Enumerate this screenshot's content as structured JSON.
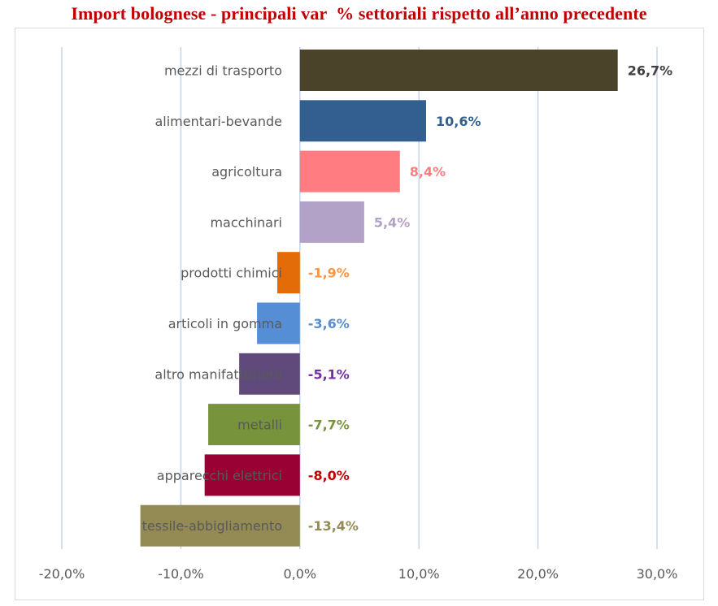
{
  "chart_data": {
    "type": "bar",
    "orientation": "horizontal",
    "title": "Import bolognese - principali var  % settoriali rispetto all’anno precedente",
    "categories": [
      "mezzi di trasporto",
      "alimentari-bevande",
      "agricoltura",
      "macchinari",
      "prodotti chimici",
      "articoli in gomma",
      "altro manifatturiero",
      "metalli",
      "apparecchi elettrici",
      "tessile-abbigliamento"
    ],
    "values": [
      26.7,
      10.6,
      8.4,
      5.4,
      -1.9,
      -3.6,
      -5.1,
      -7.7,
      -8.0,
      -13.4
    ],
    "value_labels": [
      "26,7%",
      "10,6%",
      "8,4%",
      "5,4%",
      "-1,9%",
      "-3,6%",
      "-5,1%",
      "-7,7%",
      "-8,0%",
      "-13,4%"
    ],
    "bar_colors": [
      "#4a4229",
      "#335f90",
      "#ff7c80",
      "#b3a2c7",
      "#e36c09",
      "#558ed5",
      "#604a7b",
      "#77933c",
      "#990033",
      "#948a54"
    ],
    "label_colors": [
      "#404040",
      "#335f90",
      "#ff7c80",
      "#b3a2c7",
      "#f79646",
      "#558ed5",
      "#7030a0",
      "#77933c",
      "#c00000",
      "#948a54"
    ],
    "xlim": [
      -20,
      30
    ],
    "xticks": [
      -20,
      -10,
      0,
      10,
      20,
      30
    ],
    "xtick_labels": [
      "-20,0%",
      "-10,0%",
      "0,0%",
      "10,0%",
      "20,0%",
      "30,0%"
    ],
    "grid": "vertical",
    "legend": "none",
    "xlabel": "",
    "ylabel": ""
  }
}
